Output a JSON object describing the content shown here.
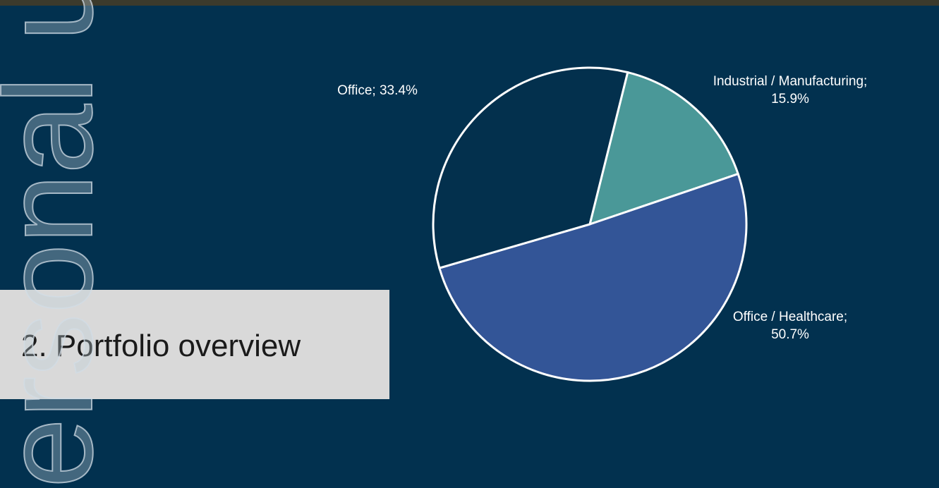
{
  "watermark": "ersonal us",
  "heading": "2. Portfolio overview",
  "chart_data": {
    "type": "pie",
    "values": [
      15.9,
      50.7,
      33.4
    ],
    "value_labels": [
      "Industrial / Manufacturing; 15.9%",
      "Office / Healthcare; 50.7%",
      "Office; 33.4%"
    ],
    "colors": [
      "#4a9898",
      "#335597",
      "#03304d"
    ]
  }
}
